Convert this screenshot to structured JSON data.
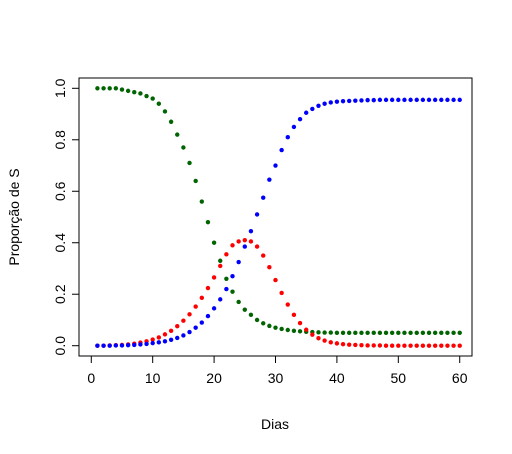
{
  "chart_data": {
    "type": "scatter",
    "title": "",
    "xlabel": "Dias",
    "ylabel": "Proporção de S",
    "xlim": [
      -2,
      62
    ],
    "ylim": [
      -0.04,
      1.04
    ],
    "xticks": [
      0,
      10,
      20,
      30,
      40,
      50,
      60
    ],
    "yticks": [
      0.0,
      0.2,
      0.4,
      0.6,
      0.8,
      1.0
    ],
    "xtick_labels": [
      "0",
      "10",
      "20",
      "30",
      "40",
      "50",
      "60"
    ],
    "ytick_labels": [
      "0.0",
      "0.2",
      "0.4",
      "0.6",
      "0.8",
      "1.0"
    ],
    "grid": false,
    "legend": "none",
    "x": [
      1,
      2,
      3,
      4,
      5,
      6,
      7,
      8,
      9,
      10,
      11,
      12,
      13,
      14,
      15,
      16,
      17,
      18,
      19,
      20,
      21,
      22,
      23,
      24,
      25,
      26,
      27,
      28,
      29,
      30,
      31,
      32,
      33,
      34,
      35,
      36,
      37,
      38,
      39,
      40,
      41,
      42,
      43,
      44,
      45,
      46,
      47,
      48,
      49,
      50,
      51,
      52,
      53,
      54,
      55,
      56,
      57,
      58,
      59,
      60
    ],
    "series": [
      {
        "color": "#006400",
        "values": [
          1.0,
          1.0,
          1.0,
          1.0,
          0.995,
          0.99,
          0.985,
          0.98,
          0.97,
          0.96,
          0.94,
          0.91,
          0.87,
          0.82,
          0.77,
          0.71,
          0.64,
          0.56,
          0.48,
          0.4,
          0.33,
          0.26,
          0.21,
          0.17,
          0.14,
          0.12,
          0.1,
          0.087,
          0.077,
          0.07,
          0.065,
          0.061,
          0.058,
          0.056,
          0.054,
          0.053,
          0.052,
          0.051,
          0.051,
          0.05,
          0.05,
          0.05,
          0.05,
          0.05,
          0.05,
          0.05,
          0.05,
          0.05,
          0.05,
          0.05,
          0.05,
          0.05,
          0.05,
          0.05,
          0.05,
          0.05,
          0.05,
          0.05,
          0.05,
          0.05
        ]
      },
      {
        "color": "#ff0000",
        "values": [
          0.0,
          0.0,
          0.001,
          0.002,
          0.003,
          0.005,
          0.008,
          0.012,
          0.017,
          0.024,
          0.032,
          0.044,
          0.058,
          0.076,
          0.097,
          0.122,
          0.152,
          0.186,
          0.224,
          0.265,
          0.31,
          0.355,
          0.39,
          0.405,
          0.41,
          0.405,
          0.385,
          0.35,
          0.305,
          0.255,
          0.205,
          0.16,
          0.12,
          0.088,
          0.062,
          0.043,
          0.029,
          0.02,
          0.013,
          0.009,
          0.006,
          0.004,
          0.003,
          0.002,
          0.001,
          0.001,
          0.001,
          0.0,
          0.0,
          0.0,
          0.0,
          0.0,
          0.0,
          0.0,
          0.0,
          0.0,
          0.0,
          0.0,
          0.0,
          0.0
        ]
      },
      {
        "color": "#0000ff",
        "values": [
          0.0,
          0.0,
          0.0,
          0.001,
          0.001,
          0.002,
          0.003,
          0.005,
          0.007,
          0.01,
          0.013,
          0.017,
          0.023,
          0.03,
          0.04,
          0.053,
          0.07,
          0.09,
          0.115,
          0.145,
          0.18,
          0.22,
          0.27,
          0.325,
          0.385,
          0.445,
          0.51,
          0.575,
          0.645,
          0.7,
          0.76,
          0.81,
          0.85,
          0.88,
          0.905,
          0.92,
          0.932,
          0.94,
          0.945,
          0.948,
          0.95,
          0.951,
          0.952,
          0.953,
          0.954,
          0.954,
          0.955,
          0.955,
          0.955,
          0.955,
          0.955,
          0.955,
          0.955,
          0.955,
          0.955,
          0.955,
          0.955,
          0.955,
          0.955,
          0.955
        ]
      }
    ]
  }
}
